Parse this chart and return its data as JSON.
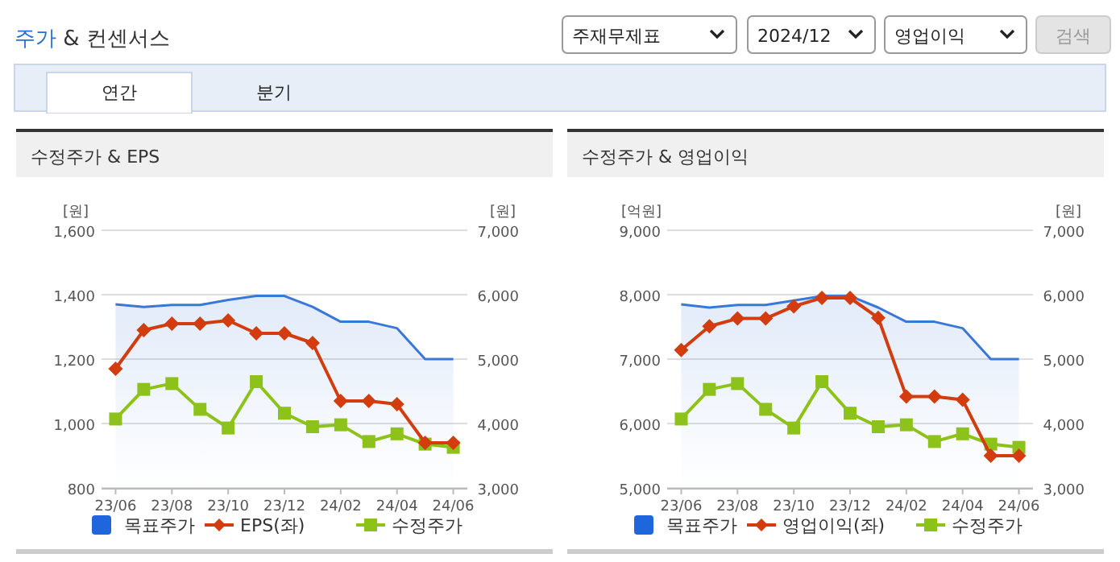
{
  "chart_data": [
    {
      "type": "other",
      "title": "주가 & 컨센서스",
      "annotations": [
        "주재무제표",
        "2024/12",
        "영업이익",
        "검색",
        "연간",
        "분기"
      ]
    },
    {
      "type": "line",
      "title": "수정주가 & EPS",
      "ylabel": "[원]",
      "y2label": "[원]",
      "categories": [
        "23/06",
        null,
        "23/08",
        null,
        "23/10",
        null,
        "23/12",
        null,
        "24/02",
        null,
        "24/04",
        null,
        "24/06"
      ],
      "ylim": [
        800,
        1600
      ],
      "yticks": [
        {
          "value": 800,
          "label": "800"
        },
        {
          "value": 1000,
          "label": "1,000"
        },
        {
          "value": 1200,
          "label": "1,200"
        },
        {
          "value": 1400,
          "label": "1,400"
        },
        {
          "value": 1600,
          "label": "1,600"
        }
      ],
      "y2lim": [
        3000,
        7000
      ],
      "y2ticks": [
        {
          "value": 3000,
          "label": "3,000"
        },
        {
          "value": 4000,
          "label": "4,000"
        },
        {
          "value": 5000,
          "label": "5,000"
        },
        {
          "value": 6000,
          "label": "6,000"
        },
        {
          "value": 7000,
          "label": "7,000"
        }
      ],
      "grid": "y",
      "legend": "bottom",
      "series": [
        {
          "name": "목표주가",
          "type": "area",
          "axis": "y2",
          "marker": "none",
          "color": "#3a78d8",
          "values": [
            5850,
            5810,
            5840,
            5840,
            5920,
            5980,
            5980,
            5810,
            5580,
            5580,
            5480,
            5000,
            5000
          ]
        },
        {
          "name": "EPS(좌)",
          "type": "line",
          "marker": "diamond",
          "color": "#d23c0e",
          "values": [
            1170,
            1290,
            1310,
            1310,
            1320,
            1280,
            1280,
            1250,
            1070,
            1070,
            1060,
            940,
            940
          ]
        },
        {
          "name": "수정주가",
          "type": "line",
          "axis": "y2",
          "marker": "square",
          "color": "#8cc21a",
          "values": [
            4070,
            4530,
            4620,
            4220,
            3930,
            4650,
            4160,
            3950,
            3980,
            3720,
            3840,
            3680,
            3630
          ]
        }
      ]
    },
    {
      "type": "line",
      "title": "수정주가 & 영업이익",
      "ylabel": "[억원]",
      "y2label": "[원]",
      "categories": [
        "23/06",
        null,
        "23/08",
        null,
        "23/10",
        null,
        "23/12",
        null,
        "24/02",
        null,
        "24/04",
        null,
        "24/06"
      ],
      "ylim": [
        5000,
        9000
      ],
      "yticks": [
        {
          "value": 5000,
          "label": "5,000"
        },
        {
          "value": 6000,
          "label": "6,000"
        },
        {
          "value": 7000,
          "label": "7,000"
        },
        {
          "value": 8000,
          "label": "8,000"
        },
        {
          "value": 9000,
          "label": "9,000"
        }
      ],
      "y2lim": [
        3000,
        7000
      ],
      "y2ticks": [
        {
          "value": 3000,
          "label": "3,000"
        },
        {
          "value": 4000,
          "label": "4,000"
        },
        {
          "value": 5000,
          "label": "5,000"
        },
        {
          "value": 6000,
          "label": "6,000"
        },
        {
          "value": 7000,
          "label": "7,000"
        }
      ],
      "grid": "y",
      "legend": "bottom",
      "series": [
        {
          "name": "목표주가",
          "type": "area",
          "axis": "y2",
          "marker": "none",
          "color": "#3a78d8",
          "values": [
            5850,
            5800,
            5840,
            5840,
            5910,
            5980,
            5980,
            5800,
            5580,
            5580,
            5480,
            5000,
            5000
          ]
        },
        {
          "name": "영업이익(좌)",
          "type": "line",
          "marker": "diamond",
          "color": "#d23c0e",
          "values": [
            7140,
            7510,
            7630,
            7630,
            7820,
            7950,
            7950,
            7640,
            6420,
            6420,
            6370,
            5500,
            5500
          ]
        },
        {
          "name": "수정주가",
          "type": "line",
          "axis": "y2",
          "marker": "square",
          "color": "#8cc21a",
          "values": [
            4070,
            4530,
            4620,
            4220,
            3930,
            4650,
            4160,
            3950,
            3980,
            3720,
            3840,
            3680,
            3630
          ]
        }
      ]
    }
  ]
}
